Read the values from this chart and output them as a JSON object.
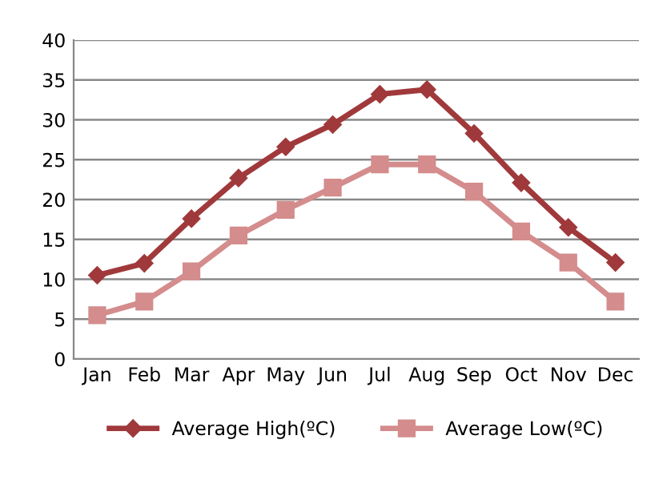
{
  "chart_data": {
    "type": "line",
    "categories": [
      "Jan",
      "Feb",
      "Mar",
      "Apr",
      "May",
      "Jun",
      "Jul",
      "Aug",
      "Sep",
      "Oct",
      "Nov",
      "Dec"
    ],
    "series": [
      {
        "name": "Average High(ºC)",
        "color": "#a0393b",
        "marker": "diamond",
        "values": [
          10.5,
          12,
          17.6,
          22.7,
          26.6,
          29.4,
          33.2,
          33.8,
          28.3,
          22.1,
          16.5,
          12.1
        ]
      },
      {
        "name": "Average Low(ºC)",
        "color": "#d48c8c",
        "marker": "square",
        "values": [
          5.5,
          7.2,
          11,
          15.5,
          18.7,
          21.5,
          24.4,
          24.4,
          21,
          16,
          12.1,
          7.2
        ]
      }
    ],
    "ylim": [
      0,
      40
    ],
    "yticks": [
      0,
      5,
      10,
      15,
      20,
      25,
      30,
      35,
      40
    ],
    "grid": "y",
    "legend": "bottom"
  }
}
